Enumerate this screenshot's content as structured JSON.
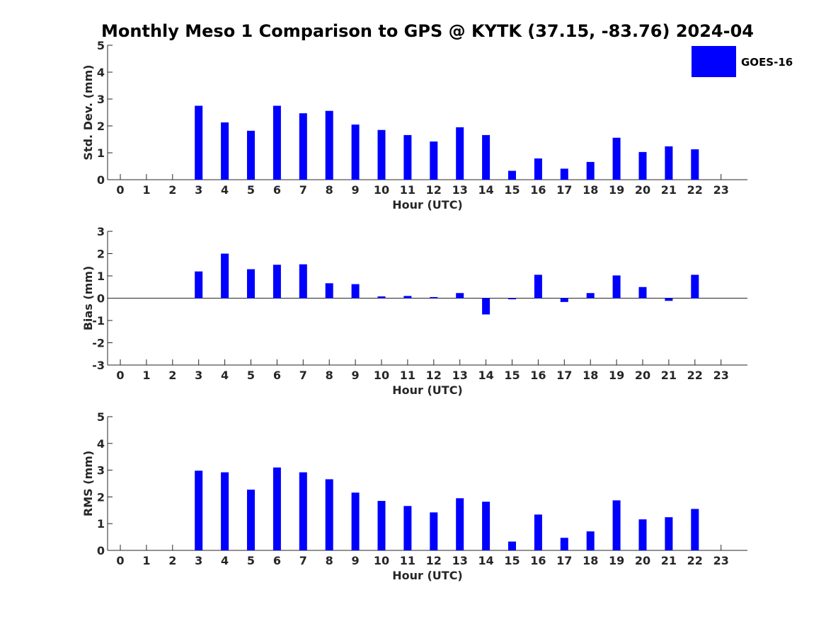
{
  "title": "Monthly Meso 1 Comparison to GPS @ KYTK (37.15, -83.76) 2024-04",
  "legend": {
    "label": "GOES-16",
    "color": "#0000ff",
    "position": "top-right"
  },
  "chart_data": [
    {
      "type": "bar",
      "ylabel": "Std. Dev. (mm)",
      "xlabel": "Hour (UTC)",
      "ylim": [
        0,
        5
      ],
      "yticks": [
        "0",
        "1",
        "2",
        "3",
        "4",
        "5"
      ],
      "categories": [
        "0",
        "1",
        "2",
        "3",
        "4",
        "5",
        "6",
        "7",
        "8",
        "9",
        "10",
        "11",
        "12",
        "13",
        "14",
        "15",
        "16",
        "17",
        "18",
        "19",
        "20",
        "21",
        "22",
        "23"
      ],
      "series": [
        {
          "name": "GOES-16",
          "color": "#0000ff",
          "values": [
            null,
            null,
            null,
            2.75,
            2.13,
            1.82,
            2.75,
            2.47,
            2.56,
            2.05,
            1.85,
            1.66,
            1.42,
            1.95,
            1.66,
            0.33,
            0.79,
            0.41,
            0.66,
            1.56,
            1.03,
            1.24,
            1.13,
            null
          ]
        }
      ]
    },
    {
      "type": "bar",
      "ylabel": "Bias (mm)",
      "xlabel": "Hour (UTC)",
      "ylim": [
        -3,
        3
      ],
      "yticks": [
        "-3",
        "-2",
        "-1",
        "0",
        "1",
        "2",
        "3"
      ],
      "categories": [
        "0",
        "1",
        "2",
        "3",
        "4",
        "5",
        "6",
        "7",
        "8",
        "9",
        "10",
        "11",
        "12",
        "13",
        "14",
        "15",
        "16",
        "17",
        "18",
        "19",
        "20",
        "21",
        "22",
        "23"
      ],
      "series": [
        {
          "name": "GOES-16",
          "color": "#0000ff",
          "values": [
            null,
            null,
            null,
            1.2,
            2.0,
            1.3,
            1.5,
            1.52,
            0.67,
            0.63,
            0.08,
            0.1,
            0.05,
            0.23,
            -0.73,
            -0.05,
            1.05,
            -0.17,
            0.23,
            1.02,
            0.5,
            -0.12,
            1.05,
            null
          ]
        }
      ]
    },
    {
      "type": "bar",
      "ylabel": "RMS (mm)",
      "xlabel": "Hour (UTC)",
      "ylim": [
        0,
        5
      ],
      "yticks": [
        "0",
        "1",
        "2",
        "3",
        "4",
        "5"
      ],
      "categories": [
        "0",
        "1",
        "2",
        "3",
        "4",
        "5",
        "6",
        "7",
        "8",
        "9",
        "10",
        "11",
        "12",
        "13",
        "14",
        "15",
        "16",
        "17",
        "18",
        "19",
        "20",
        "21",
        "22",
        "23"
      ],
      "series": [
        {
          "name": "GOES-16",
          "color": "#0000ff",
          "values": [
            null,
            null,
            null,
            2.98,
            2.92,
            2.27,
            3.1,
            2.92,
            2.66,
            2.16,
            1.85,
            1.66,
            1.42,
            1.95,
            1.82,
            0.33,
            1.34,
            0.47,
            0.71,
            1.87,
            1.16,
            1.24,
            1.55,
            null
          ]
        }
      ]
    }
  ]
}
